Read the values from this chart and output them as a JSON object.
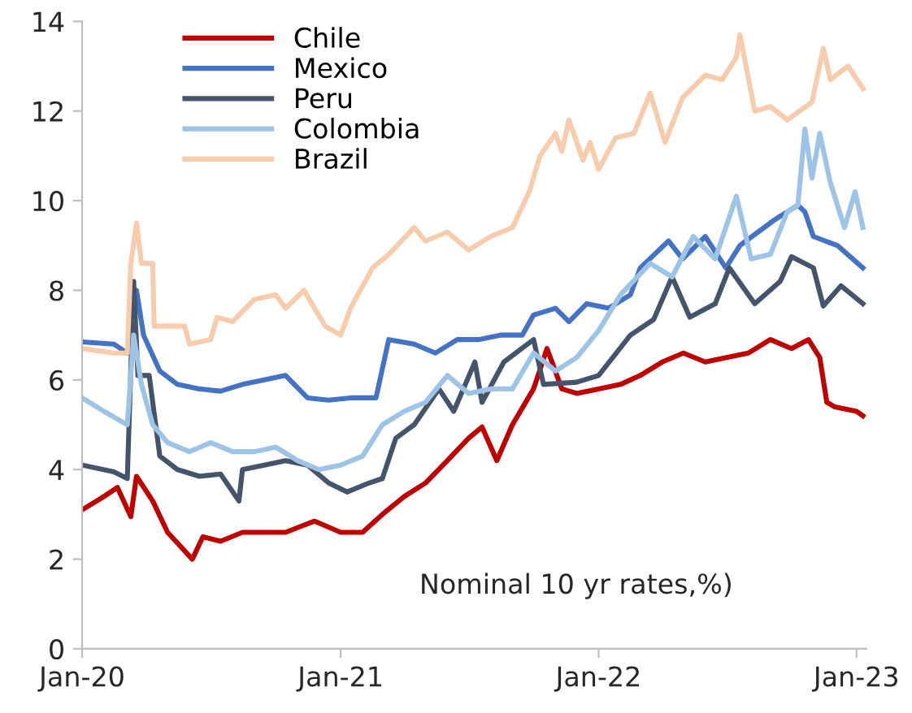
{
  "chart_data": {
    "type": "line",
    "legend": "top left",
    "grid": false,
    "marker": "none",
    "line_style": "solid",
    "ylim": [
      0,
      14
    ],
    "yticks": [
      0,
      2,
      4,
      6,
      8,
      10,
      12,
      14
    ],
    "xlim": [
      "2020-01-01",
      "2023-01-15"
    ],
    "xticks": [
      {
        "value": "2020-01-01",
        "label": "Jan-20"
      },
      {
        "value": "2021-01-01",
        "label": "Jan-21"
      },
      {
        "value": "2022-01-01",
        "label": "Jan-22"
      },
      {
        "value": "2023-01-01",
        "label": "Jan-23"
      }
    ],
    "annotations": [
      "Nominal 10 yr rates,%)"
    ],
    "series": [
      {
        "name": "Chile",
        "color": "#c00000",
        "x": [
          "2020-01-01",
          "2020-02-01",
          "2020-02-20",
          "2020-03-10",
          "2020-03-18",
          "2020-04-10",
          "2020-05-01",
          "2020-06-05",
          "2020-06-20",
          "2020-07-15",
          "2020-08-15",
          "2020-09-15",
          "2020-10-15",
          "2020-11-25",
          "2021-01-01",
          "2021-02-01",
          "2021-03-01",
          "2021-04-01",
          "2021-05-01",
          "2021-06-01",
          "2021-07-01",
          "2021-07-20",
          "2021-08-10",
          "2021-09-01",
          "2021-10-01",
          "2021-10-20",
          "2021-11-10",
          "2021-12-01",
          "2022-01-01",
          "2022-02-01",
          "2022-03-01",
          "2022-04-01",
          "2022-05-01",
          "2022-06-01",
          "2022-07-01",
          "2022-08-01",
          "2022-09-01",
          "2022-10-01",
          "2022-10-25",
          "2022-11-10",
          "2022-11-20",
          "2022-12-01",
          "2023-01-01",
          "2023-01-10"
        ],
        "values": [
          3.1,
          3.4,
          3.6,
          2.95,
          3.85,
          3.3,
          2.6,
          2.0,
          2.5,
          2.4,
          2.6,
          2.6,
          2.6,
          2.85,
          2.6,
          2.6,
          3.0,
          3.4,
          3.7,
          4.2,
          4.7,
          4.95,
          4.2,
          5.0,
          5.8,
          6.7,
          5.8,
          5.7,
          5.8,
          5.9,
          6.1,
          6.4,
          6.6,
          6.4,
          6.5,
          6.6,
          6.9,
          6.7,
          6.9,
          6.5,
          5.5,
          5.4,
          5.3,
          5.2
        ]
      },
      {
        "name": "Mexico",
        "color": "#4472c4",
        "x": [
          "2020-01-01",
          "2020-02-15",
          "2020-03-05",
          "2020-03-18",
          "2020-03-28",
          "2020-04-20",
          "2020-05-15",
          "2020-06-15",
          "2020-07-15",
          "2020-08-15",
          "2020-09-15",
          "2020-10-15",
          "2020-11-15",
          "2020-12-15",
          "2021-01-15",
          "2021-02-20",
          "2021-03-10",
          "2021-04-15",
          "2021-05-15",
          "2021-06-15",
          "2021-07-15",
          "2021-08-15",
          "2021-09-15",
          "2021-10-01",
          "2021-11-01",
          "2021-11-20",
          "2021-12-15",
          "2022-01-15",
          "2022-02-15",
          "2022-03-01",
          "2022-04-10",
          "2022-04-30",
          "2022-06-01",
          "2022-06-30",
          "2022-07-20",
          "2022-09-05",
          "2022-10-10",
          "2022-10-20",
          "2022-11-01",
          "2022-12-05",
          "2023-01-10"
        ],
        "values": [
          6.85,
          6.8,
          6.6,
          8.0,
          7.0,
          6.2,
          5.9,
          5.8,
          5.75,
          5.9,
          6.0,
          6.1,
          5.6,
          5.55,
          5.6,
          5.6,
          6.9,
          6.8,
          6.6,
          6.9,
          6.9,
          7.0,
          7.0,
          7.45,
          7.6,
          7.3,
          7.7,
          7.6,
          7.9,
          8.5,
          9.1,
          8.7,
          9.2,
          8.5,
          9.0,
          9.55,
          9.9,
          9.75,
          9.2,
          9.0,
          8.5
        ]
      },
      {
        "name": "Peru",
        "color": "#44546a",
        "x": [
          "2020-01-01",
          "2020-02-15",
          "2020-03-05",
          "2020-03-14",
          "2020-03-20",
          "2020-04-05",
          "2020-04-20",
          "2020-05-15",
          "2020-06-15",
          "2020-07-15",
          "2020-08-10",
          "2020-08-15",
          "2020-09-15",
          "2020-10-15",
          "2020-11-15",
          "2020-12-15",
          "2021-01-10",
          "2021-02-10",
          "2021-03-01",
          "2021-03-20",
          "2021-04-15",
          "2021-05-20",
          "2021-06-10",
          "2021-07-10",
          "2021-07-20",
          "2021-08-20",
          "2021-10-01",
          "2021-10-15",
          "2021-12-01",
          "2022-01-01",
          "2022-02-15",
          "2022-03-20",
          "2022-04-15",
          "2022-05-10",
          "2022-06-15",
          "2022-07-05",
          "2022-08-10",
          "2022-09-15",
          "2022-10-01",
          "2022-11-01",
          "2022-11-15",
          "2022-12-10",
          "2023-01-10"
        ],
        "values": [
          4.1,
          3.95,
          3.8,
          8.2,
          6.1,
          6.1,
          4.3,
          4.0,
          3.85,
          3.9,
          3.3,
          4.0,
          4.1,
          4.2,
          4.1,
          3.7,
          3.5,
          3.7,
          3.8,
          4.7,
          5.0,
          5.8,
          5.3,
          6.4,
          5.5,
          6.4,
          6.9,
          5.9,
          5.95,
          6.1,
          7.0,
          7.35,
          8.3,
          7.4,
          7.7,
          8.5,
          7.7,
          8.2,
          8.75,
          8.5,
          7.65,
          8.1,
          7.7
        ]
      },
      {
        "name": "Colombia",
        "color": "#9dc3e6",
        "x": [
          "2020-01-01",
          "2020-02-01",
          "2020-03-05",
          "2020-03-14",
          "2020-03-25",
          "2020-04-10",
          "2020-05-01",
          "2020-06-01",
          "2020-07-01",
          "2020-08-01",
          "2020-09-01",
          "2020-10-01",
          "2020-11-01",
          "2020-12-01",
          "2021-01-01",
          "2021-02-01",
          "2021-03-01",
          "2021-04-01",
          "2021-05-01",
          "2021-06-01",
          "2021-07-01",
          "2021-08-01",
          "2021-09-01",
          "2021-10-01",
          "2021-11-01",
          "2021-12-01",
          "2022-01-01",
          "2022-02-01",
          "2022-03-15",
          "2022-04-15",
          "2022-05-15",
          "2022-06-15",
          "2022-07-15",
          "2022-08-05",
          "2022-09-01",
          "2022-09-25",
          "2022-10-10",
          "2022-10-20",
          "2022-10-30",
          "2022-11-10",
          "2022-11-25",
          "2022-12-15",
          "2022-12-30",
          "2023-01-10"
        ],
        "values": [
          5.6,
          5.3,
          5.0,
          7.0,
          5.9,
          5.0,
          4.6,
          4.4,
          4.6,
          4.4,
          4.4,
          4.5,
          4.2,
          4.0,
          4.1,
          4.3,
          5.0,
          5.3,
          5.5,
          6.1,
          5.7,
          5.8,
          5.8,
          6.6,
          6.2,
          6.5,
          7.1,
          7.9,
          8.6,
          8.3,
          9.2,
          8.7,
          10.1,
          8.7,
          8.8,
          9.75,
          9.9,
          11.6,
          10.5,
          11.5,
          10.4,
          9.4,
          10.2,
          9.4
        ]
      },
      {
        "name": "Brazil",
        "color": "#f8cbad",
        "x": [
          "2020-01-01",
          "2020-02-15",
          "2020-03-05",
          "2020-03-10",
          "2020-03-18",
          "2020-03-25",
          "2020-04-10",
          "2020-04-12",
          "2020-05-25",
          "2020-06-01",
          "2020-07-01",
          "2020-07-10",
          "2020-08-01",
          "2020-09-01",
          "2020-10-01",
          "2020-10-15",
          "2020-11-10",
          "2020-12-10",
          "2021-01-01",
          "2021-01-15",
          "2021-02-15",
          "2021-03-10",
          "2021-04-15",
          "2021-05-01",
          "2021-06-01",
          "2021-07-01",
          "2021-08-01",
          "2021-09-01",
          "2021-09-25",
          "2021-10-10",
          "2021-11-01",
          "2021-11-10",
          "2021-11-20",
          "2021-12-10",
          "2021-12-20",
          "2022-01-01",
          "2022-01-25",
          "2022-02-20",
          "2022-03-15",
          "2022-04-05",
          "2022-04-30",
          "2022-06-01",
          "2022-06-25",
          "2022-07-15",
          "2022-07-20",
          "2022-08-10",
          "2022-09-01",
          "2022-09-25",
          "2022-10-30",
          "2022-11-15",
          "2022-11-25",
          "2022-12-20",
          "2023-01-10"
        ],
        "values": [
          6.7,
          6.6,
          6.6,
          8.6,
          9.5,
          8.6,
          8.6,
          7.2,
          7.2,
          6.8,
          6.9,
          7.4,
          7.3,
          7.8,
          7.9,
          7.6,
          8.0,
          7.2,
          7.0,
          7.6,
          8.5,
          8.8,
          9.4,
          9.1,
          9.3,
          8.9,
          9.2,
          9.4,
          10.2,
          11.0,
          11.5,
          11.1,
          11.8,
          10.9,
          11.3,
          10.7,
          11.4,
          11.5,
          12.4,
          11.3,
          12.3,
          12.8,
          12.7,
          13.2,
          13.7,
          12.0,
          12.1,
          11.8,
          12.2,
          13.4,
          12.7,
          13.0,
          12.5
        ]
      }
    ]
  }
}
